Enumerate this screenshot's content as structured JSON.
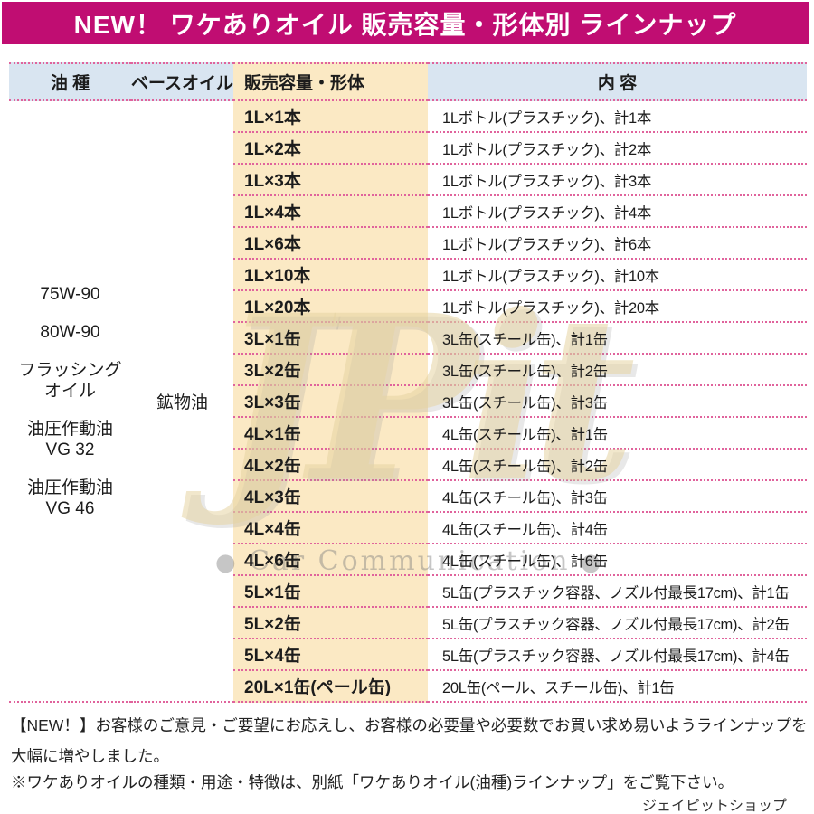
{
  "banner": {
    "title": "NEW！ ワケありオイル 販売容量・形体別 ラインナップ",
    "bg_color": "#c00d72"
  },
  "table": {
    "headers": {
      "oil_type": "油 種",
      "base_oil": "ベースオイル",
      "volume_form": "販売容量・形体",
      "content": "内 容"
    },
    "oil_types": [
      {
        "lines": [
          "75W-90"
        ]
      },
      {
        "lines": [
          "80W-90"
        ]
      },
      {
        "lines": [
          "フラッシング",
          "オイル"
        ]
      },
      {
        "lines": [
          "油圧作動油",
          "VG 32"
        ]
      },
      {
        "lines": [
          "油圧作動油",
          "VG 46"
        ]
      }
    ],
    "base_oil_value": "鉱物油",
    "rows": [
      {
        "volume_form": "1L×1本",
        "content": "1Lボトル(プラスチック)、計1本"
      },
      {
        "volume_form": "1L×2本",
        "content": "1Lボトル(プラスチック)、計2本"
      },
      {
        "volume_form": "1L×3本",
        "content": "1Lボトル(プラスチック)、計3本"
      },
      {
        "volume_form": "1L×4本",
        "content": "1Lボトル(プラスチック)、計4本"
      },
      {
        "volume_form": "1L×6本",
        "content": "1Lボトル(プラスチック)、計6本"
      },
      {
        "volume_form": "1L×10本",
        "content": "1Lボトル(プラスチック)、計10本"
      },
      {
        "volume_form": "1L×20本",
        "content": "1Lボトル(プラスチック)、計20本"
      },
      {
        "volume_form": "3L×1缶",
        "content": "3L缶(スチール缶)、計1缶"
      },
      {
        "volume_form": "3L×2缶",
        "content": "3L缶(スチール缶)、計2缶"
      },
      {
        "volume_form": "3L×3缶",
        "content": "3L缶(スチール缶)、計3缶"
      },
      {
        "volume_form": "4L×1缶",
        "content": "4L缶(スチール缶)、計1缶"
      },
      {
        "volume_form": "4L×2缶",
        "content": "4L缶(スチール缶)、計2缶"
      },
      {
        "volume_form": "4L×3缶",
        "content": "4L缶(スチール缶)、計3缶"
      },
      {
        "volume_form": "4L×4缶",
        "content": "4L缶(スチール缶)、計4缶"
      },
      {
        "volume_form": "4L×6缶",
        "content": "4L缶(スチール缶)、計6缶"
      },
      {
        "volume_form": "5L×1缶",
        "content": "5L缶(プラスチック容器、ノズル付最長17cm)、計1缶"
      },
      {
        "volume_form": "5L×2缶",
        "content": "5L缶(プラスチック容器、ノズル付最長17cm)、計2缶"
      },
      {
        "volume_form": "5L×4缶",
        "content": "5L缶(プラスチック容器、ノズル付最長17cm)、計4缶"
      },
      {
        "volume_form": "20L×1缶(ペール缶)",
        "content": "20L缶(ペール、スチール缶)、計1缶"
      }
    ],
    "colors": {
      "header_blue": "#d9e5f1",
      "cream": "#fbe9c4",
      "line_pink": "#e0639c"
    }
  },
  "watermark": {
    "logo_text": "JPit",
    "caption": "Car Communication"
  },
  "footer": {
    "line1": "【NEW！】お客様のご意見・ご要望にお応えし、お客様の必要量や必要数でお買い求め易いようラインナップを",
    "line2": "大幅に増やしました。",
    "line3": "※ワケありオイルの種類・用途・特徴は、別紙「ワケありオイル(油種)ラインナップ」をご覧下さい。",
    "shop": "ジェイピットショップ"
  }
}
